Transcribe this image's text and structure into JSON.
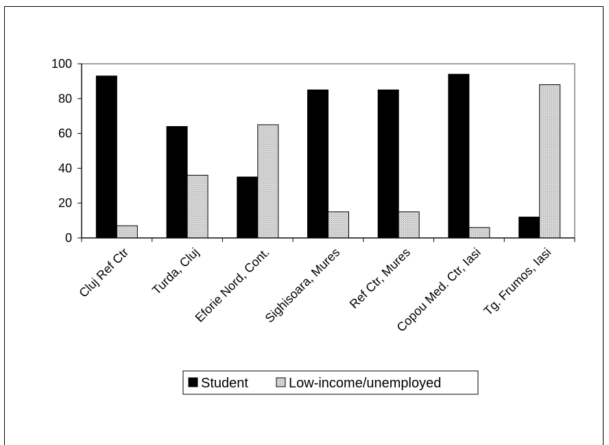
{
  "chart_data": {
    "type": "bar",
    "categories": [
      "Cluj Ref Ctr",
      "Turda, Cluj",
      "Eforie Nord, Cont.",
      "Sighisoara, Mures",
      "Ref Ctr, Mures",
      "Copou Med. Ctr, Iasi",
      "Tg. Frumos, Iasi"
    ],
    "series": [
      {
        "name": "Student",
        "values": [
          93,
          64,
          35,
          85,
          85,
          94,
          12
        ],
        "color": "#000000"
      },
      {
        "name": "Low-income/unemployed",
        "values": [
          7,
          36,
          65,
          15,
          15,
          6,
          88
        ],
        "color": "#d0d0d0"
      }
    ],
    "ylim": [
      0,
      100
    ],
    "yticks": [
      0,
      20,
      40,
      60,
      80,
      100
    ],
    "ytick_labels": [
      "0",
      "20",
      "40",
      "60",
      "80",
      "100"
    ],
    "legend_position": "bottom",
    "grid": false
  }
}
